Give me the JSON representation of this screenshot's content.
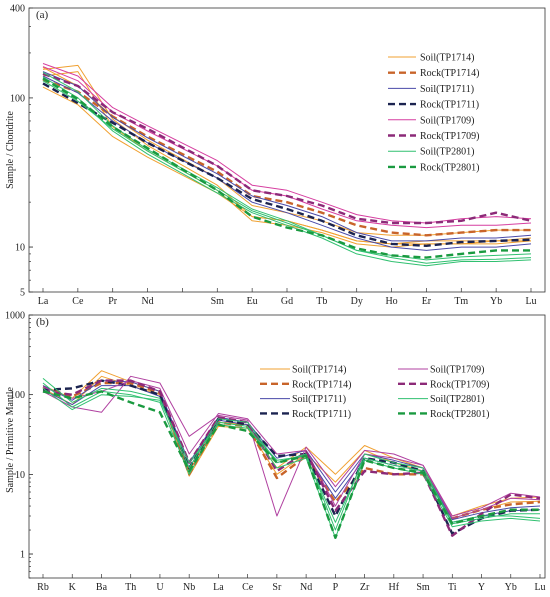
{
  "chart_data": [
    {
      "type": "line",
      "panel_label": "(a)",
      "ylabel": "Sample / Chondrite",
      "yscale": "log",
      "ylim": [
        5,
        400
      ],
      "yticks": [
        5,
        10,
        100,
        400
      ],
      "ytick_labels": [
        "5",
        "10",
        "100",
        "400"
      ],
      "categories": [
        "La",
        "Ce",
        "Pr",
        "Nd",
        "Pm",
        "Sm",
        "Eu",
        "Gd",
        "Tb",
        "Dy",
        "Ho",
        "Er",
        "Tm",
        "Yb",
        "Lu"
      ],
      "category_labels": [
        "La",
        "Ce",
        "Pr",
        "Nd",
        "",
        "Sm",
        "Eu",
        "Gd",
        "Tb",
        "Dy",
        "Ho",
        "Er",
        "Tm",
        "Yb",
        "Lu"
      ],
      "legend_position": "top-right",
      "legend": [
        {
          "label": "Soil(TP1714)",
          "color": "#f0a030",
          "dashed": false
        },
        {
          "label": "Rock(TP1714)",
          "color": "#c8642a",
          "dashed": true
        },
        {
          "label": "Soil(TP1711)",
          "color": "#4a4aa8",
          "dashed": false
        },
        {
          "label": "Rock(TP1711)",
          "color": "#1c2450",
          "dashed": true
        },
        {
          "label": "Soil(TP1709)",
          "color": "#d63ea0",
          "dashed": false
        },
        {
          "label": "Rock(TP1709)",
          "color": "#8c2a78",
          "dashed": true
        },
        {
          "label": "Soil(TP2801)",
          "color": "#30c070",
          "dashed": false
        },
        {
          "label": "Rock(TP2801)",
          "color": "#1a9a40",
          "dashed": true
        }
      ],
      "series": [
        {
          "group": 0,
          "color": "#f0a030",
          "dashed": false,
          "values": [
            155,
            165,
            72,
            48,
            null,
            26,
            16,
            15,
            13,
            11,
            10.5,
            11,
            11,
            11,
            11.5
          ]
        },
        {
          "group": 0,
          "color": "#f0a030",
          "dashed": false,
          "values": [
            140,
            150,
            64,
            44,
            null,
            24,
            15,
            14,
            12.5,
            10.5,
            10,
            10.5,
            10.5,
            10.5,
            11
          ]
        },
        {
          "group": 0,
          "color": "#f0a030",
          "dashed": false,
          "values": [
            118,
            90,
            55,
            40,
            null,
            23,
            16,
            15,
            13,
            11,
            10.5,
            10.5,
            10.5,
            11,
            11
          ]
        },
        {
          "group": 0,
          "color": "#f0a030",
          "dashed": false,
          "values": [
            160,
            120,
            75,
            52,
            null,
            29,
            19,
            17,
            15,
            12.5,
            12,
            12,
            12.5,
            13,
            13
          ]
        },
        {
          "group": 1,
          "color": "#c8642a",
          "dashed": true,
          "values": [
            132,
            110,
            75,
            55,
            null,
            32,
            22,
            20,
            17,
            14,
            12.5,
            12,
            12.5,
            13,
            13
          ]
        },
        {
          "group": 2,
          "color": "#4a4aa8",
          "dashed": false,
          "values": [
            150,
            120,
            74,
            54,
            null,
            31,
            22,
            19,
            16,
            12.5,
            11,
            11,
            11.5,
            11.5,
            12
          ]
        },
        {
          "group": 2,
          "color": "#4a4aa8",
          "dashed": false,
          "values": [
            140,
            108,
            70,
            50,
            null,
            29,
            20,
            17,
            14,
            11.5,
            10,
            9.5,
            10,
            10,
            10.5
          ]
        },
        {
          "group": 3,
          "color": "#1c2450",
          "dashed": true,
          "values": [
            125,
            92,
            68,
            50,
            null,
            29,
            21,
            18,
            15,
            12,
            10.5,
            10.2,
            10.8,
            11,
            11.2
          ]
        },
        {
          "group": 4,
          "color": "#d63ea0",
          "dashed": false,
          "values": [
            170,
            140,
            86,
            65,
            null,
            38,
            26,
            24,
            20,
            16.5,
            15,
            14.5,
            15.5,
            16,
            15.5
          ]
        },
        {
          "group": 4,
          "color": "#d63ea0",
          "dashed": false,
          "values": [
            162,
            130,
            80,
            60,
            null,
            35,
            24,
            22,
            18,
            15,
            14,
            13.5,
            14,
            14,
            14.5
          ]
        },
        {
          "group": 5,
          "color": "#8c2a78",
          "dashed": true,
          "values": [
            145,
            120,
            80,
            62,
            null,
            35,
            24,
            22,
            19,
            15.5,
            14.5,
            14.5,
            15,
            17,
            15
          ]
        },
        {
          "group": 6,
          "color": "#30c070",
          "dashed": false,
          "values": [
            148,
            110,
            65,
            45,
            null,
            25,
            18,
            15,
            12,
            9.5,
            8.5,
            7.8,
            8.2,
            8.3,
            8.5
          ]
        },
        {
          "group": 6,
          "color": "#30c070",
          "dashed": false,
          "values": [
            138,
            100,
            60,
            42,
            null,
            23,
            17,
            14,
            11.5,
            9,
            8,
            7.5,
            8,
            8,
            8.2
          ]
        },
        {
          "group": 6,
          "color": "#30c070",
          "dashed": false,
          "values": [
            130,
            95,
            62,
            44,
            null,
            24,
            17.5,
            14.5,
            12,
            9.5,
            8.8,
            8.2,
            8.6,
            8.8,
            9
          ]
        },
        {
          "group": 7,
          "color": "#1a9a40",
          "dashed": true,
          "values": [
            135,
            98,
            64,
            46,
            null,
            24,
            16,
            13.5,
            12,
            9.8,
            8.8,
            8.5,
            9,
            9.5,
            9.5
          ]
        }
      ]
    },
    {
      "type": "line",
      "panel_label": "(b)",
      "ylabel": "Sample / Primitive Mantle",
      "yscale": "log",
      "ylim": [
        0.5,
        1000
      ],
      "yticks": [
        1,
        10,
        100,
        1000
      ],
      "ytick_labels": [
        "1",
        "10",
        "100",
        "1000"
      ],
      "categories": [
        "Rb",
        "K",
        "Ba",
        "Th",
        "U",
        "Nb",
        "La",
        "Ce",
        "Sr",
        "Nd",
        "P",
        "Zr",
        "Hf",
        "Sm",
        "Ti",
        "Y",
        "Yb",
        "Lu"
      ],
      "category_labels": [
        "Rb",
        "K",
        "Ba",
        "Th",
        "U",
        "Nb",
        "La",
        "Ce",
        "Sr",
        "Nd",
        "P",
        "Zr",
        "Hf",
        "Sm",
        "Ti",
        "Y",
        "Yb",
        "Lu"
      ],
      "legend_position": "top-right",
      "legend": [
        {
          "label": "Soil(TP1714)",
          "color": "#f0a030",
          "dashed": false
        },
        {
          "label": "Soil(TP1709)",
          "color": "#b040a0",
          "dashed": false
        },
        {
          "label": "Rock(TP1714)",
          "color": "#c8642a",
          "dashed": true
        },
        {
          "label": "Rock(TP1709)",
          "color": "#8c2a78",
          "dashed": true
        },
        {
          "label": "Soil(TP1711)",
          "color": "#4a4aa8",
          "dashed": false
        },
        {
          "label": "Soil(TP2801)",
          "color": "#30c070",
          "dashed": false
        },
        {
          "label": "Rock(TP1711)",
          "color": "#1c2450",
          "dashed": true
        },
        {
          "label": "Rock(TP2801)",
          "color": "#1a9a40",
          "dashed": true
        }
      ],
      "series": [
        {
          "group": 0,
          "color": "#f0a030",
          "dashed": false,
          "values": [
            130,
            90,
            200,
            145,
            110,
            11,
            45,
            42,
            12,
            22,
            10,
            23,
            16,
            12,
            3.0,
            4.0,
            5.0,
            5.2
          ]
        },
        {
          "group": 0,
          "color": "#f0a030",
          "dashed": false,
          "values": [
            120,
            75,
            170,
            130,
            100,
            9.5,
            40,
            38,
            10,
            18,
            8,
            20,
            14,
            11,
            2.8,
            3.6,
            4.5,
            4.6
          ]
        },
        {
          "group": 1,
          "color": "#c8642a",
          "dashed": true,
          "values": [
            125,
            95,
            140,
            140,
            105,
            10,
            45,
            40,
            9,
            17,
            4.5,
            12,
            10,
            10,
            2.8,
            3.6,
            4.2,
            4.5
          ]
        },
        {
          "group": 2,
          "color": "#4a4aa8",
          "dashed": false,
          "values": [
            130,
            85,
            150,
            145,
            110,
            14,
            52,
            45,
            16,
            20,
            6,
            18,
            15,
            12,
            2.7,
            3.3,
            3.8,
            4.0
          ]
        },
        {
          "group": 2,
          "color": "#4a4aa8",
          "dashed": false,
          "values": [
            115,
            75,
            130,
            130,
            95,
            12,
            48,
            42,
            14,
            18,
            5,
            16,
            13,
            11,
            2.5,
            3.0,
            3.5,
            3.6
          ]
        },
        {
          "group": 3,
          "color": "#1c2450",
          "dashed": true,
          "values": [
            115,
            120,
            150,
            130,
            100,
            12,
            50,
            42,
            17,
            18,
            3.0,
            16,
            14,
            11,
            1.8,
            2.8,
            3.5,
            3.6
          ]
        },
        {
          "group": 4,
          "color": "#b040a0",
          "dashed": false,
          "values": [
            110,
            70,
            60,
            170,
            140,
            30,
            55,
            48,
            3.0,
            22,
            7,
            20,
            18,
            13,
            3.0,
            3.8,
            5.8,
            5.2
          ]
        },
        {
          "group": 4,
          "color": "#b040a0",
          "dashed": false,
          "values": [
            125,
            90,
            110,
            150,
            120,
            18,
            58,
            50,
            18,
            20,
            4,
            18,
            16,
            13,
            2.8,
            3.6,
            5.0,
            4.8
          ]
        },
        {
          "group": 5,
          "color": "#8c2a78",
          "dashed": true,
          "values": [
            110,
            100,
            150,
            150,
            110,
            14,
            52,
            45,
            11,
            19,
            3.5,
            11,
            10,
            10.5,
            1.7,
            3.2,
            5.6,
            5.0
          ]
        },
        {
          "group": 6,
          "color": "#30c070",
          "dashed": false,
          "values": [
            160,
            80,
            120,
            110,
            90,
            12,
            50,
            45,
            14,
            18,
            2.0,
            18,
            14,
            12,
            2.5,
            3.0,
            3.0,
            2.8
          ]
        },
        {
          "group": 6,
          "color": "#30c070",
          "dashed": false,
          "values": [
            140,
            70,
            110,
            100,
            80,
            10,
            45,
            40,
            12,
            16,
            1.6,
            15,
            12,
            10,
            2.2,
            2.6,
            2.8,
            2.6
          ]
        },
        {
          "group": 6,
          "color": "#30c070",
          "dashed": false,
          "values": [
            120,
            65,
            100,
            95,
            85,
            14,
            42,
            38,
            15,
            17,
            2.5,
            16,
            13,
            11,
            2.4,
            2.8,
            3.2,
            3.2
          ]
        },
        {
          "group": 7,
          "color": "#1a9a40",
          "dashed": true,
          "values": [
            110,
            90,
            110,
            80,
            60,
            11,
            42,
            35,
            14,
            17,
            1.6,
            15,
            12,
            10.5,
            2.4,
            3.0,
            3.6,
            3.6
          ]
        }
      ]
    }
  ]
}
